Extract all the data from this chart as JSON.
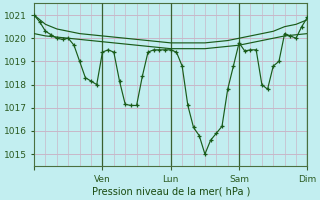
{
  "bg_color": "#c2eef0",
  "grid_color": "#c8b8c8",
  "line_color": "#1a5c1a",
  "xlabel": "Pression niveau de la mer( hPa )",
  "ylim": [
    1014.5,
    1021.5
  ],
  "xlim": [
    0,
    240
  ],
  "day_tick_positions": [
    0,
    60,
    120,
    180,
    240
  ],
  "day_tick_labels": [
    "",
    "Ven",
    "Lun",
    "Sam",
    "Dim"
  ],
  "minor_x_step": 10,
  "vline_positions": [
    60,
    120,
    180,
    240
  ],
  "line1_x": [
    0,
    10,
    20,
    30,
    40,
    50,
    60,
    70,
    80,
    90,
    100,
    110,
    120,
    130,
    140,
    150,
    160,
    170,
    180,
    190,
    200,
    210,
    220,
    230,
    240
  ],
  "line1_y": [
    1021.0,
    1020.6,
    1020.4,
    1020.3,
    1020.2,
    1020.15,
    1020.1,
    1020.05,
    1020.0,
    1019.95,
    1019.9,
    1019.85,
    1019.8,
    1019.8,
    1019.8,
    1019.8,
    1019.85,
    1019.9,
    1020.0,
    1020.1,
    1020.2,
    1020.3,
    1020.5,
    1020.6,
    1020.8
  ],
  "line2_x": [
    0,
    10,
    20,
    30,
    40,
    50,
    60,
    70,
    80,
    90,
    100,
    110,
    120,
    130,
    140,
    150,
    160,
    170,
    180,
    190,
    200,
    210,
    220,
    230,
    240
  ],
  "line2_y": [
    1020.2,
    1020.1,
    1020.05,
    1020.0,
    1019.95,
    1019.9,
    1019.85,
    1019.8,
    1019.75,
    1019.7,
    1019.65,
    1019.6,
    1019.55,
    1019.55,
    1019.55,
    1019.55,
    1019.6,
    1019.65,
    1019.7,
    1019.8,
    1019.9,
    1020.0,
    1020.1,
    1020.15,
    1020.2
  ],
  "line3_x": [
    0,
    5,
    10,
    15,
    20,
    25,
    30,
    35,
    40,
    45,
    50,
    55,
    60,
    65,
    70,
    75,
    80,
    85,
    90,
    95,
    100,
    105,
    110,
    115,
    120,
    125,
    130,
    135,
    140,
    145,
    150,
    155,
    160,
    165,
    170,
    175,
    180,
    185,
    190,
    195,
    200,
    205,
    210,
    215,
    220,
    225,
    230,
    235,
    240
  ],
  "line3_y": [
    1021.0,
    1020.7,
    1020.3,
    1020.15,
    1020.0,
    1019.95,
    1020.0,
    1019.7,
    1019.0,
    1018.3,
    1018.15,
    1018.0,
    1019.4,
    1019.5,
    1019.4,
    1018.15,
    1017.15,
    1017.1,
    1017.1,
    1018.35,
    1019.4,
    1019.5,
    1019.5,
    1019.5,
    1019.5,
    1019.4,
    1018.8,
    1017.1,
    1016.15,
    1015.8,
    1015.0,
    1015.6,
    1015.9,
    1016.2,
    1017.8,
    1018.8,
    1019.8,
    1019.45,
    1019.5,
    1019.5,
    1018.0,
    1017.8,
    1018.8,
    1019.0,
    1020.2,
    1020.1,
    1020.0,
    1020.5,
    1020.9
  ]
}
